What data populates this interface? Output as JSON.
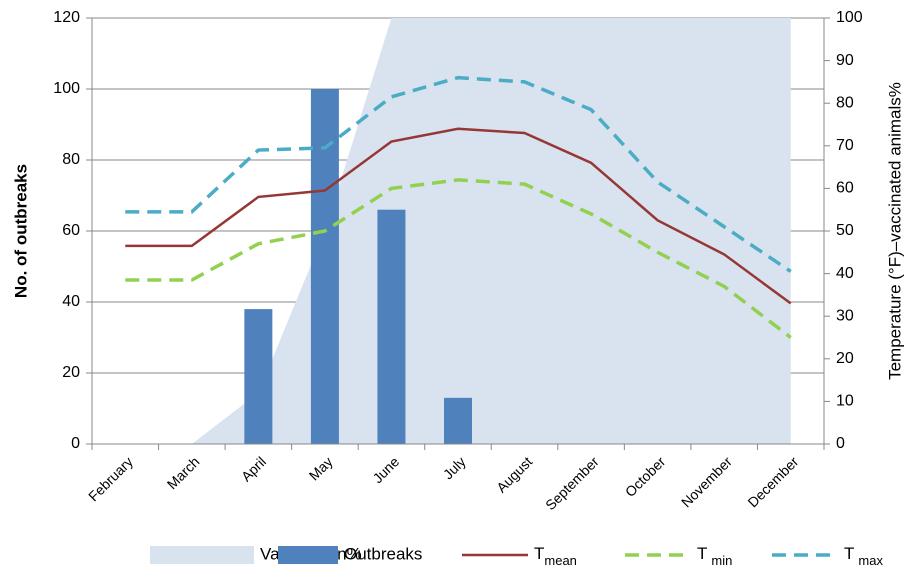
{
  "chart_data": {
    "type": "combo",
    "categories": [
      "February",
      "March",
      "April",
      "May",
      "June",
      "July",
      "August",
      "September",
      "October",
      "November",
      "December"
    ],
    "ylabel": "No. of outbreaks",
    "y2label": "Temperature (°F)–vaccinated animals%",
    "ylim": [
      0,
      120
    ],
    "yticks": [
      0,
      20,
      40,
      60,
      80,
      100,
      120
    ],
    "y2lim": [
      0,
      100
    ],
    "y2ticks": [
      0,
      10,
      20,
      30,
      40,
      50,
      60,
      70,
      80,
      90,
      100
    ],
    "grid": true,
    "legend": "bottom",
    "series": [
      {
        "name": "Vaccination%",
        "type": "area",
        "axis": "y2",
        "color": "#d9e2ef",
        "values": [
          null,
          0,
          12,
          50,
          100,
          100,
          100,
          100,
          100,
          100,
          100
        ]
      },
      {
        "name": "Outbreaks",
        "type": "bar",
        "axis": "y",
        "color": "#4f81bd",
        "values": [
          0,
          0,
          38,
          100,
          66,
          13,
          0,
          0,
          0,
          0,
          0
        ]
      },
      {
        "name": "Tmean",
        "type": "line",
        "axis": "y2",
        "color": "#953735",
        "dashed": false,
        "values": [
          46.5,
          46.5,
          58,
          59.5,
          71,
          74,
          73,
          66,
          52.5,
          44.5,
          33
        ]
      },
      {
        "name": "Tmin",
        "type": "line",
        "axis": "y2",
        "color": "#92d050",
        "dashed": true,
        "values": [
          38.5,
          38.5,
          47,
          50,
          60,
          62,
          61,
          54,
          45,
          37,
          25
        ]
      },
      {
        "name": "Tmax",
        "type": "line",
        "axis": "y2",
        "color": "#4bacc6",
        "dashed": true,
        "values": [
          54.5,
          54.5,
          69,
          69.5,
          81.5,
          86,
          85,
          78.5,
          61.5,
          51,
          40.5
        ]
      }
    ]
  }
}
